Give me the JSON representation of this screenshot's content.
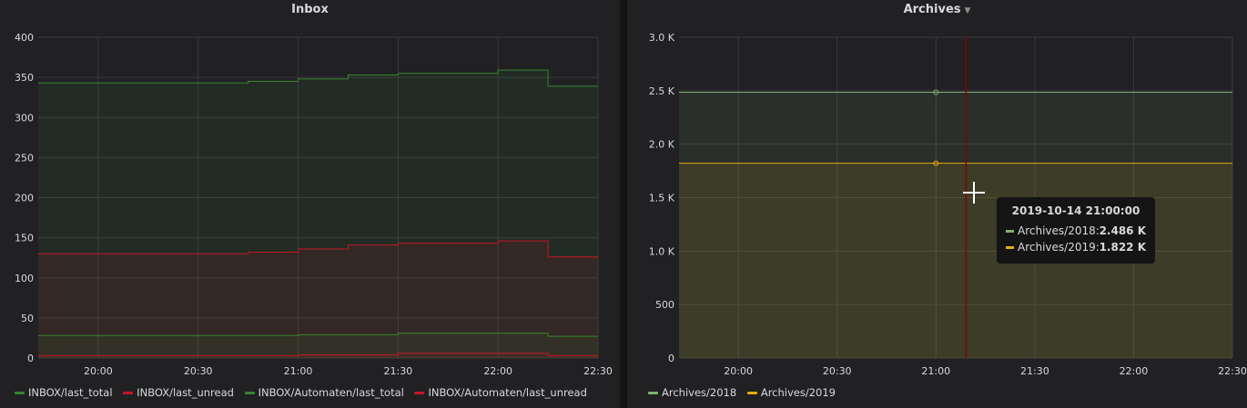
{
  "chart_data": [
    {
      "type": "area",
      "title": "Inbox",
      "x_ticks": [
        "20:00",
        "20:30",
        "21:00",
        "21:30",
        "22:00",
        "22:30"
      ],
      "y_ticks": [
        "0",
        "50",
        "100",
        "150",
        "200",
        "250",
        "300",
        "350",
        "400"
      ],
      "ylim": [
        0,
        400
      ],
      "xlim": [
        "19:42",
        "22:30"
      ],
      "grid": true,
      "legend_position": "bottom",
      "x": [
        "19:42",
        "20:45",
        "21:00",
        "21:15",
        "21:30",
        "22:00",
        "22:15",
        "22:30"
      ],
      "series": [
        {
          "name": "INBOX/last_total",
          "color": "#37872d",
          "values": [
            343,
            345,
            348,
            353,
            355,
            359,
            339,
            339
          ]
        },
        {
          "name": "INBOX/last_unread",
          "color": "#c4162a",
          "values": [
            130,
            132,
            136,
            141,
            143,
            146,
            126,
            126
          ]
        },
        {
          "name": "INBOX/Automaten/last_total",
          "color": "#37872d",
          "values": [
            28,
            28,
            29,
            29,
            31,
            31,
            27,
            27
          ]
        },
        {
          "name": "INBOX/Automaten/last_unread",
          "color": "#c4162a",
          "values": [
            3,
            3,
            4,
            4,
            6,
            6,
            3,
            3
          ]
        }
      ]
    },
    {
      "type": "area",
      "title": "Archives",
      "x_ticks": [
        "20:00",
        "20:30",
        "21:00",
        "21:30",
        "22:00",
        "22:30"
      ],
      "y_ticks": [
        "0",
        "500",
        "1.0 K",
        "1.5 K",
        "2.0 K",
        "2.5 K",
        "3.0 K"
      ],
      "ylim": [
        0,
        3000
      ],
      "xlim": [
        "19:42",
        "22:30"
      ],
      "grid": true,
      "legend_position": "bottom",
      "x": [
        "19:42",
        "22:30"
      ],
      "series": [
        {
          "name": "Archives/2018",
          "color": "#7eb26d",
          "values": [
            2486,
            2486
          ]
        },
        {
          "name": "Archives/2019",
          "color": "#e5ac0e",
          "values": [
            1822,
            1822
          ]
        }
      ],
      "tooltip": {
        "time": "2019-10-14 21:00:00",
        "rows": [
          {
            "name": "Archives/2018:",
            "value": "2.486 K",
            "color": "#7eb26d"
          },
          {
            "name": "Archives/2019:",
            "value": "1.822 K",
            "color": "#e5ac0e"
          }
        ]
      }
    }
  ]
}
